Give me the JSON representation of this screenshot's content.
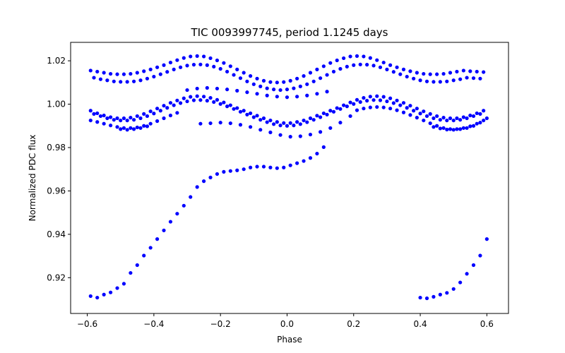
{
  "chart_data": {
    "type": "scatter",
    "title": "TIC 0093997745, period 1.1245 days",
    "xlabel": "Phase",
    "ylabel": "Normalized PDC flux",
    "xlim": [
      -0.65,
      0.665
    ],
    "ylim": [
      0.9035,
      1.0285
    ],
    "xticks": [
      -0.6,
      -0.4,
      -0.2,
      0.0,
      0.2,
      0.4,
      0.6
    ],
    "xtick_labels": [
      "−0.6",
      "−0.4",
      "−0.2",
      "0.0",
      "0.2",
      "0.4",
      "0.6"
    ],
    "yticks": [
      0.92,
      0.94,
      0.96,
      0.98,
      1.0,
      1.02
    ],
    "ytick_labels": [
      "0.92",
      "0.94",
      "0.96",
      "0.98",
      "1.00",
      "1.02"
    ],
    "grid": false,
    "marker_color": "#0000ff",
    "series": [
      {
        "x": [
          -0.59,
          -0.57,
          -0.55,
          -0.53,
          -0.51,
          -0.49,
          -0.47,
          -0.45,
          -0.43,
          -0.41,
          -0.39,
          -0.37,
          -0.35,
          -0.33,
          -0.31,
          -0.29,
          -0.27,
          -0.25,
          -0.23,
          -0.21,
          -0.19,
          -0.17,
          -0.15,
          -0.13,
          -0.11,
          -0.09,
          -0.07,
          -0.05,
          -0.03,
          -0.01,
          0.01,
          0.03,
          0.05,
          0.07,
          0.09,
          0.11,
          0.13,
          0.15,
          0.17,
          0.19,
          0.21,
          0.23,
          0.25,
          0.27,
          0.29,
          0.31,
          0.33,
          0.35,
          0.37,
          0.39,
          0.41,
          0.43,
          0.45,
          0.47,
          0.49,
          0.51,
          0.53,
          0.55,
          0.57,
          0.59
        ],
        "y": [
          1.0155,
          1.015,
          1.0145,
          1.014,
          1.0138,
          1.0138,
          1.014,
          1.0145,
          1.0152,
          1.016,
          1.017,
          1.018,
          1.0192,
          1.0203,
          1.0213,
          1.022,
          1.0222,
          1.022,
          1.0212,
          1.0202,
          1.019,
          1.0175,
          1.016,
          1.0145,
          1.013,
          1.0118,
          1.0108,
          1.0102,
          1.01,
          1.0102,
          1.0108,
          1.0118,
          1.013,
          1.0145,
          1.016,
          1.0175,
          1.019,
          1.0202,
          1.0212,
          1.022,
          1.0222,
          1.022,
          1.0213,
          1.0203,
          1.0192,
          1.018,
          1.017,
          1.016,
          1.0152,
          1.0145,
          1.014,
          1.0138,
          1.0138,
          1.014,
          1.0145,
          1.015,
          1.0155,
          1.0152,
          1.015,
          1.0148
        ]
      },
      {
        "x": [
          -0.58,
          -0.56,
          -0.54,
          -0.52,
          -0.5,
          -0.48,
          -0.46,
          -0.44,
          -0.42,
          -0.4,
          -0.38,
          -0.36,
          -0.34,
          -0.32,
          -0.3,
          -0.28,
          -0.26,
          -0.24,
          -0.22,
          -0.2,
          -0.18,
          -0.16,
          -0.14,
          -0.12,
          -0.1,
          -0.08,
          -0.06,
          -0.04,
          -0.02,
          0.0,
          0.02,
          0.04,
          0.06,
          0.08,
          0.1,
          0.12,
          0.14,
          0.16,
          0.18,
          0.2,
          0.22,
          0.24,
          0.26,
          0.28,
          0.3,
          0.32,
          0.34,
          0.36,
          0.38,
          0.4,
          0.42,
          0.44,
          0.46,
          0.48,
          0.5,
          0.52,
          0.54,
          0.56,
          0.58
        ],
        "y": [
          1.0122,
          1.0115,
          1.011,
          1.0105,
          1.0103,
          1.0103,
          1.0105,
          1.011,
          1.0118,
          1.0127,
          1.0138,
          1.0149,
          1.016,
          1.017,
          1.0178,
          1.0182,
          1.0183,
          1.018,
          1.0173,
          1.0163,
          1.015,
          1.0135,
          1.012,
          1.0105,
          1.0092,
          1.0082,
          1.0073,
          1.0068,
          1.0065,
          1.0068,
          1.0073,
          1.0082,
          1.0092,
          1.0105,
          1.012,
          1.0135,
          1.015,
          1.0163,
          1.0173,
          1.018,
          1.0183,
          1.0182,
          1.0178,
          1.017,
          1.016,
          1.0149,
          1.0138,
          1.0127,
          1.0118,
          1.011,
          1.0105,
          1.0103,
          1.0103,
          1.0105,
          1.011,
          1.0115,
          1.0122,
          1.012,
          1.0118
        ]
      },
      {
        "x": [
          -0.3,
          -0.27,
          -0.24,
          -0.21,
          -0.18,
          -0.15,
          -0.12,
          -0.09,
          -0.06,
          -0.03,
          0.0,
          0.03,
          0.06,
          0.09,
          0.12
        ],
        "y": [
          1.0065,
          1.0072,
          1.0075,
          1.0072,
          1.0068,
          1.0062,
          1.0055,
          1.0048,
          1.004,
          1.0035,
          1.0032,
          1.0035,
          1.004,
          1.0048,
          1.0058
        ]
      },
      {
        "x": [
          -0.59,
          -0.57,
          -0.55,
          -0.53,
          -0.51,
          -0.49,
          -0.47,
          -0.45,
          -0.43,
          -0.41,
          -0.39,
          -0.37,
          -0.35,
          -0.33,
          -0.31,
          -0.29,
          -0.27,
          -0.25,
          -0.23,
          -0.21,
          -0.19,
          -0.17,
          -0.15,
          -0.13,
          -0.11,
          -0.09,
          -0.07,
          -0.05,
          -0.03,
          -0.01,
          0.01,
          0.03,
          0.05,
          0.07,
          0.09,
          0.11,
          0.13,
          0.15,
          0.17,
          0.19,
          0.21,
          0.23,
          0.25,
          0.27,
          0.29,
          0.31,
          0.33,
          0.35,
          0.37,
          0.39,
          0.41,
          0.43,
          0.45,
          0.47,
          0.49,
          0.51,
          0.53,
          0.55,
          0.57,
          0.59
        ],
        "y": [
          0.997,
          0.9958,
          0.9948,
          0.994,
          0.9935,
          0.9935,
          0.9938,
          0.9945,
          0.9955,
          0.9967,
          0.998,
          0.9993,
          1.0006,
          1.0017,
          1.0027,
          1.0034,
          1.0037,
          1.0035,
          1.0029,
          1.002,
          1.0008,
          0.9995,
          0.9982,
          0.997,
          0.9958,
          0.9947,
          0.9935,
          0.9925,
          0.9918,
          0.9913,
          0.9913,
          0.9918,
          0.9925,
          0.9935,
          0.9947,
          0.9958,
          0.997,
          0.9982,
          0.9995,
          1.0008,
          1.002,
          1.0029,
          1.0035,
          1.0037,
          1.0034,
          1.0027,
          1.0017,
          1.0006,
          0.9993,
          0.998,
          0.9967,
          0.9955,
          0.9945,
          0.9938,
          0.9935,
          0.9935,
          0.994,
          0.9948,
          0.9958,
          0.997
        ]
      },
      {
        "x": [
          -0.58,
          -0.56,
          -0.54,
          -0.52,
          -0.5,
          -0.48,
          -0.46,
          -0.44,
          -0.42,
          -0.4,
          -0.38,
          -0.36,
          -0.34,
          -0.32,
          -0.3,
          -0.28,
          -0.26,
          -0.24,
          -0.22,
          -0.2,
          -0.18,
          -0.16,
          -0.14,
          -0.12,
          -0.1,
          -0.08,
          -0.06,
          -0.04,
          -0.02,
          0.0,
          0.02,
          0.04,
          0.06,
          0.08,
          0.1,
          0.12,
          0.14,
          0.16,
          0.18,
          0.2,
          0.22,
          0.24,
          0.26,
          0.28,
          0.3,
          0.32,
          0.34,
          0.36,
          0.38,
          0.4,
          0.42,
          0.44,
          0.46,
          0.48,
          0.5,
          0.52,
          0.54,
          0.56,
          0.58
        ],
        "y": [
          0.9955,
          0.9945,
          0.9935,
          0.9928,
          0.9925,
          0.9925,
          0.9928,
          0.9935,
          0.9945,
          0.9957,
          0.997,
          0.9983,
          0.9995,
          1.0005,
          1.0013,
          1.0018,
          1.0019,
          1.0016,
          1.001,
          1.0001,
          0.999,
          0.9978,
          0.9965,
          0.9952,
          0.994,
          0.9928,
          0.9917,
          0.9908,
          0.9902,
          0.99,
          0.9902,
          0.9908,
          0.9917,
          0.9928,
          0.994,
          0.9952,
          0.9965,
          0.9978,
          0.999,
          1.0001,
          1.001,
          1.0016,
          1.0019,
          1.0018,
          1.0013,
          1.0005,
          0.9995,
          0.9983,
          0.997,
          0.9957,
          0.9945,
          0.9935,
          0.9928,
          0.9925,
          0.9925,
          0.9928,
          0.9935,
          0.9945,
          0.9955
        ]
      },
      {
        "x": [
          -0.59,
          -0.57,
          -0.55,
          -0.53,
          -0.51,
          -0.49,
          -0.47,
          -0.45,
          -0.43,
          -0.41,
          -0.39,
          -0.37,
          -0.35,
          -0.33,
          0.21,
          0.23,
          0.25,
          0.27,
          0.29,
          0.31,
          0.33,
          0.35,
          0.37,
          0.39,
          0.41,
          0.43,
          0.45,
          0.47,
          0.49,
          0.51,
          0.53,
          0.55,
          0.57,
          0.59
        ],
        "y": [
          0.9925,
          0.9918,
          0.991,
          0.9902,
          0.9895,
          0.989,
          0.989,
          0.9893,
          0.99,
          0.991,
          0.9922,
          0.9935,
          0.9948,
          0.996,
          0.9972,
          0.998,
          0.9985,
          0.9987,
          0.9985,
          0.998,
          0.9972,
          0.9962,
          0.995,
          0.9938,
          0.9925,
          0.9912,
          0.99,
          0.989,
          0.9885,
          0.9885,
          0.989,
          0.9898,
          0.991,
          0.9925
        ]
      },
      {
        "x": [
          -0.5,
          -0.48,
          -0.46,
          -0.44,
          -0.42,
          0.44,
          0.46,
          0.48,
          0.5,
          0.52,
          0.54,
          0.56,
          0.58,
          0.6
        ],
        "y": [
          0.9885,
          0.9882,
          0.9885,
          0.989,
          0.9898,
          0.9895,
          0.9888,
          0.9883,
          0.9882,
          0.9885,
          0.989,
          0.99,
          0.9915,
          0.9935
        ]
      },
      {
        "x": [
          -0.26,
          -0.23,
          -0.2,
          -0.17,
          -0.14,
          -0.11,
          -0.08,
          -0.05,
          -0.02,
          0.01,
          0.04,
          0.07,
          0.1,
          0.13,
          0.16,
          0.19
        ],
        "y": [
          0.991,
          0.9912,
          0.9915,
          0.9912,
          0.9905,
          0.9895,
          0.9882,
          0.987,
          0.9858,
          0.985,
          0.9852,
          0.986,
          0.9872,
          0.989,
          0.9915,
          0.9945
        ]
      },
      {
        "x": [
          -0.59,
          -0.57,
          -0.55,
          -0.53,
          -0.51,
          -0.49,
          -0.47,
          -0.45,
          -0.43,
          -0.41,
          -0.39,
          -0.37,
          -0.35,
          -0.33,
          -0.31,
          -0.29,
          -0.27,
          -0.25,
          -0.23,
          -0.21,
          -0.19,
          -0.17,
          -0.15,
          -0.13,
          -0.11,
          -0.09,
          -0.07,
          -0.05,
          -0.03,
          -0.01,
          0.01,
          0.03,
          0.05,
          0.07,
          0.09,
          0.11
        ],
        "y": [
          0.9115,
          0.9108,
          0.9122,
          0.9132,
          0.9152,
          0.9172,
          0.9222,
          0.9258,
          0.9302,
          0.9338,
          0.9378,
          0.9418,
          0.9458,
          0.9495,
          0.9532,
          0.9572,
          0.9618,
          0.9645,
          0.9662,
          0.9678,
          0.9688,
          0.9692,
          0.9695,
          0.97,
          0.9708,
          0.9712,
          0.9712,
          0.9708,
          0.9705,
          0.9708,
          0.9718,
          0.9728,
          0.9738,
          0.9752,
          0.9772,
          0.9802
        ]
      },
      {
        "x": [
          0.4,
          0.42,
          0.44,
          0.46,
          0.48,
          0.5,
          0.52,
          0.54,
          0.56,
          0.58,
          0.6
        ],
        "y": [
          0.9108,
          0.9105,
          0.9112,
          0.9122,
          0.913,
          0.9148,
          0.9178,
          0.9218,
          0.9258,
          0.9302,
          0.9378
        ]
      }
    ]
  }
}
